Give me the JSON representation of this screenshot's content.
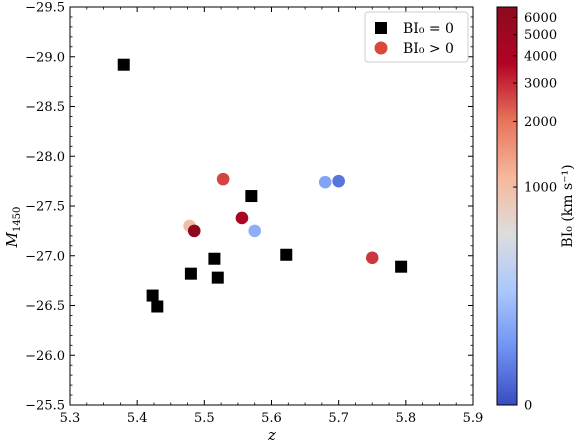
{
  "chart_data": {
    "type": "scatter",
    "title": "",
    "xlabel": "z",
    "ylabel": "M",
    "ylabel_subscript": "1450",
    "xlim": [
      5.3,
      5.9
    ],
    "ylim": [
      -25.5,
      -29.5
    ],
    "y_inverted": true,
    "xticks": [
      5.3,
      5.4,
      5.5,
      5.6,
      5.7,
      5.8,
      5.9
    ],
    "xtick_labels": [
      "5.3",
      "5.4",
      "5.5",
      "5.6",
      "5.7",
      "5.8",
      "5.9"
    ],
    "yticks": [
      -29.5,
      -29.0,
      -28.5,
      -28.0,
      -27.5,
      -27.0,
      -26.5,
      -26.0,
      -25.5
    ],
    "ytick_labels": [
      "−29.5",
      "−29.0",
      "−28.5",
      "−28.0",
      "−27.5",
      "−27.0",
      "−26.5",
      "−26.0",
      "−25.5"
    ],
    "grid": false,
    "legend_position": "top-right",
    "series": [
      {
        "name": "BI₀ = 0",
        "marker": "square",
        "color": "#000000",
        "points": [
          {
            "x": 5.38,
            "y": -28.92
          },
          {
            "x": 5.57,
            "y": -27.6
          },
          {
            "x": 5.515,
            "y": -26.97
          },
          {
            "x": 5.48,
            "y": -26.82
          },
          {
            "x": 5.52,
            "y": -26.78
          },
          {
            "x": 5.622,
            "y": -27.01
          },
          {
            "x": 5.793,
            "y": -26.89
          },
          {
            "x": 5.423,
            "y": -26.6
          },
          {
            "x": 5.43,
            "y": -26.49
          }
        ]
      },
      {
        "name": "BI₀ > 0",
        "marker": "circle",
        "color": "#d94a3c",
        "points": [
          {
            "x": 5.528,
            "y": -27.77,
            "bi": 2600
          },
          {
            "x": 5.478,
            "y": -27.3,
            "bi": 1000
          },
          {
            "x": 5.485,
            "y": -27.25,
            "bi": 6500
          },
          {
            "x": 5.556,
            "y": -27.38,
            "bi": 4200
          },
          {
            "x": 5.575,
            "y": -27.25,
            "bi": 400
          },
          {
            "x": 5.68,
            "y": -27.74,
            "bi": 350
          },
          {
            "x": 5.7,
            "y": -27.75,
            "bi": 150
          },
          {
            "x": 5.75,
            "y": -26.98,
            "bi": 2800
          }
        ]
      }
    ],
    "colorbar": {
      "label": "BI₀ (km s⁻¹)",
      "ticks": [
        0,
        1000,
        2000,
        3000,
        4000,
        5000,
        6000
      ],
      "tick_labels": [
        "0",
        "1000",
        "2000",
        "3000",
        "4000",
        "5000",
        "6000"
      ],
      "range": [
        0,
        6700
      ],
      "scale": "symlog",
      "colors": [
        "#3a4cc0",
        "#6f92f3",
        "#aac7fd",
        "#dddddd",
        "#f7b89c",
        "#e7745b",
        "#b40426",
        "#8b0a1e"
      ]
    }
  }
}
